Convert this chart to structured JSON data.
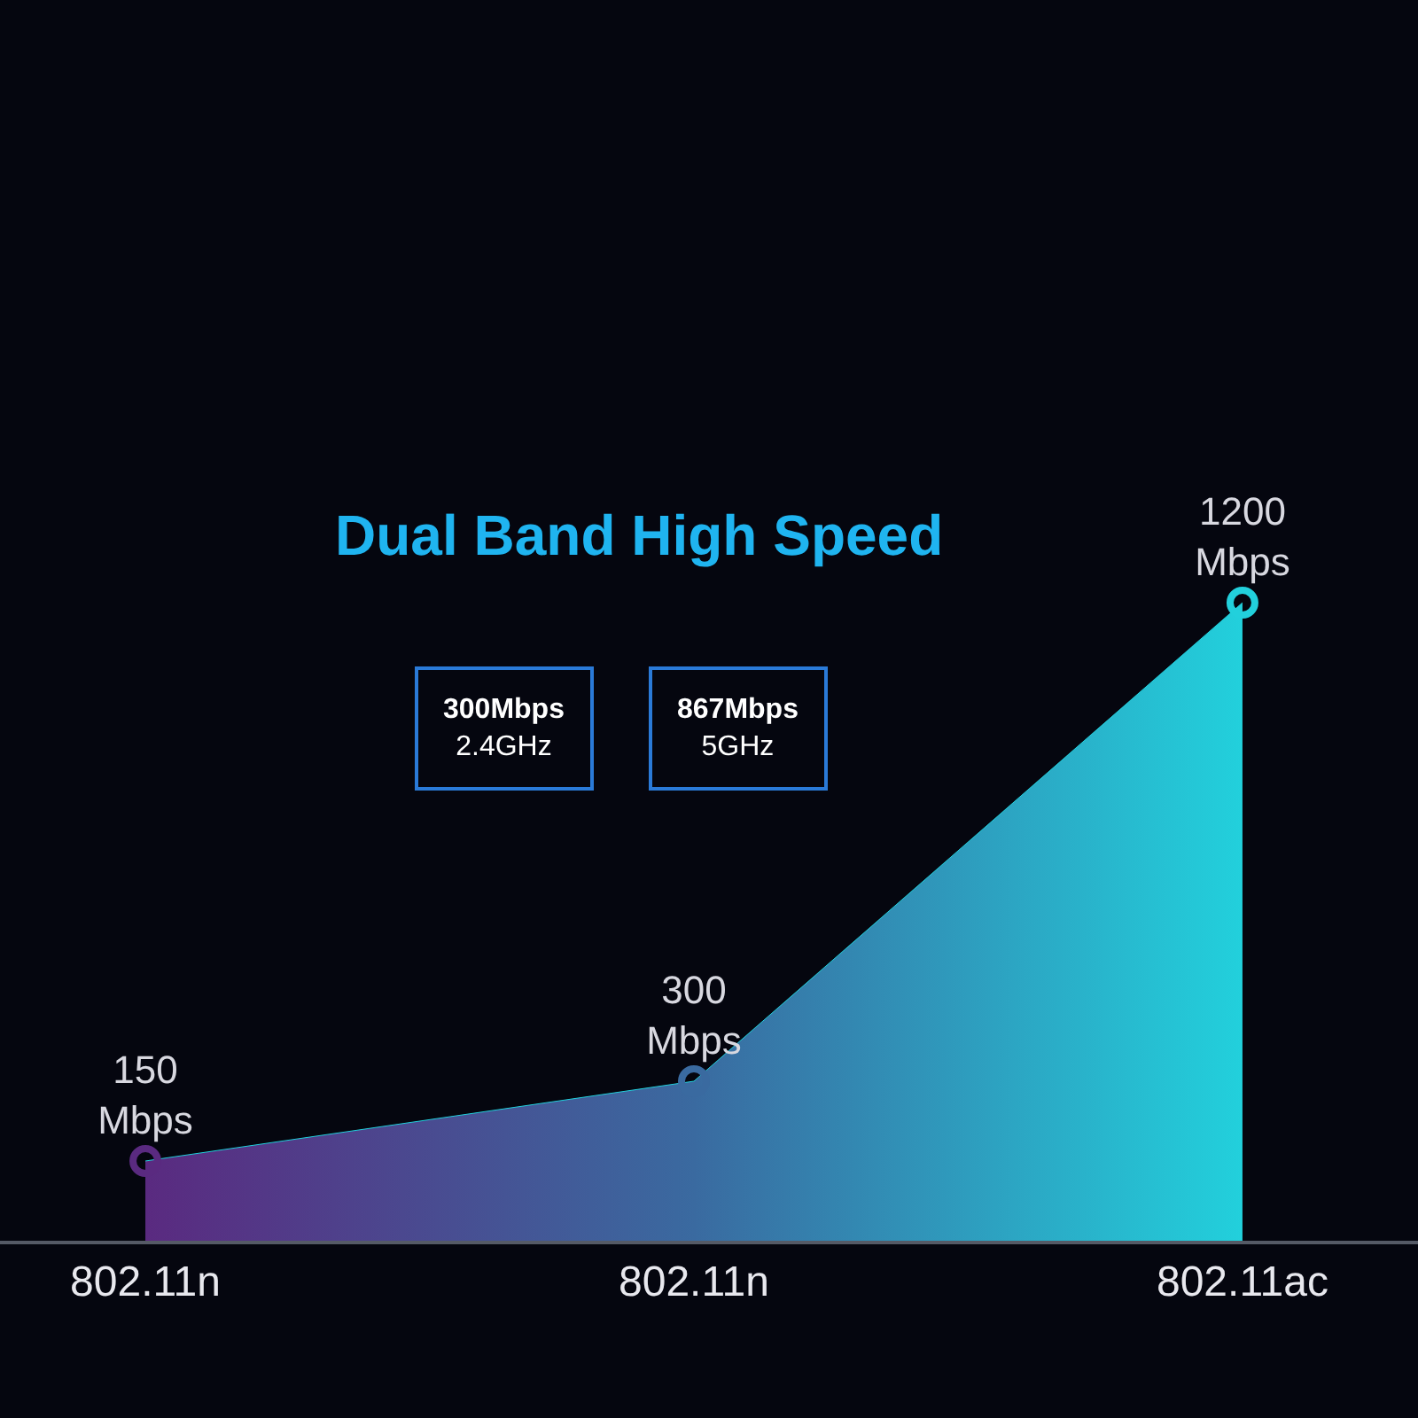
{
  "chart_data": {
    "type": "area",
    "title": "Dual Band High Speed",
    "categories": [
      "802.11n",
      "802.11n",
      "802.11ac"
    ],
    "series": [
      {
        "values": [
          150,
          300,
          1200
        ],
        "colors": [
          "#5a2a80",
          "#3a6aa0",
          "#22d0dc"
        ],
        "value_labels": [
          "150\nMbps",
          "300\nMbps",
          "1200\nMbps"
        ]
      }
    ],
    "marker": "circle",
    "grid": false,
    "legend": false,
    "annotations": [
      "300Mbps\n2.4GHz",
      "867Mbps\n5GHz"
    ]
  }
}
